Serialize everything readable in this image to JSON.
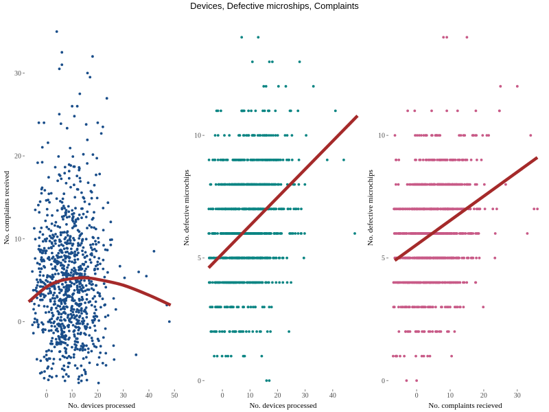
{
  "title": "Devices, Defective microships, Complaints",
  "chart_data": [
    {
      "type": "scatter",
      "xlabel": "No. devices processed",
      "ylabel": "No. complaints received",
      "xlim": [
        -8,
        51
      ],
      "ylim": [
        -8,
        35.5
      ],
      "xticks": [
        0,
        10,
        20,
        30,
        40,
        50
      ],
      "yticks": [
        0,
        10,
        20,
        30
      ],
      "point_color": "#1a4e8a",
      "trend_color": "#a52a2a",
      "trend": {
        "kind": "smooth",
        "x": [
          -7,
          0,
          5,
          10,
          15,
          20,
          30,
          40,
          48.5
        ],
        "y": [
          2.4,
          4.2,
          4.9,
          5.2,
          5.3,
          5.1,
          4.4,
          3.2,
          2.0
        ]
      },
      "generator": {
        "seed": 11,
        "n": 950,
        "x_mean": 8,
        "x_sd": 7.5,
        "x_min": -6,
        "x_max": 49,
        "y_base": 4.5,
        "y_sd": 6.5,
        "y_min": -7.5,
        "y_max": 35,
        "discrete_y": false
      },
      "extra_points": [
        [
          4,
          35
        ],
        [
          6,
          32.5
        ],
        [
          6,
          31
        ],
        [
          5,
          30.5
        ],
        [
          18,
          32
        ],
        [
          16,
          30
        ],
        [
          17,
          29.5
        ],
        [
          13,
          27.5
        ],
        [
          10,
          26
        ],
        [
          12,
          26
        ],
        [
          20,
          24
        ],
        [
          -3,
          24
        ],
        [
          -1,
          24
        ],
        [
          22,
          23.5
        ],
        [
          36,
          6
        ],
        [
          39,
          5.5
        ],
        [
          42,
          8.5
        ],
        [
          48,
          0
        ],
        [
          35,
          -4
        ],
        [
          47,
          2
        ]
      ]
    },
    {
      "type": "scatter",
      "xlabel": "No. devices processed",
      "ylabel": "No. defective microchips",
      "xlim": [
        -6,
        50
      ],
      "ylim": [
        -0.3,
        14.4
      ],
      "xticks": [
        0,
        10,
        20,
        30,
        40
      ],
      "yticks": [
        0,
        5,
        10
      ],
      "point_color": "#0b8583",
      "trend_color": "#a52a2a",
      "trend": {
        "kind": "line",
        "x": [
          -5,
          49
        ],
        "y": [
          4.6,
          10.8
        ]
      },
      "generator": {
        "seed": 23,
        "n": 1100,
        "x_mean": 8,
        "x_sd": 8,
        "x_min": -5,
        "x_max": 48,
        "y_base": 5.5,
        "y_slope": 0.08,
        "y_sd": 1.9,
        "y_min": 1,
        "y_max": 14,
        "discrete_y": true
      },
      "extra_points": [
        [
          7,
          14
        ],
        [
          13,
          14
        ],
        [
          28,
          13
        ],
        [
          33,
          12
        ],
        [
          41,
          11
        ],
        [
          38,
          9
        ],
        [
          44,
          9
        ],
        [
          48,
          6
        ],
        [
          23,
          12
        ],
        [
          -3,
          1
        ],
        [
          -1,
          2
        ],
        [
          17,
          0
        ],
        [
          16,
          0
        ]
      ]
    },
    {
      "type": "scatter",
      "xlabel": "No. complaints recieved",
      "ylabel": "No. defective microchips",
      "xlim": [
        -8,
        37
      ],
      "ylim": [
        -0.3,
        14.4
      ],
      "xticks": [
        0,
        10,
        20,
        30
      ],
      "yticks": [
        0,
        5,
        10
      ],
      "point_color": "#c85a87",
      "trend_color": "#a52a2a",
      "trend": {
        "kind": "line",
        "x": [
          -6.5,
          36
        ],
        "y": [
          4.9,
          9.1
        ]
      },
      "generator": {
        "seed": 37,
        "n": 1100,
        "x_mean": 4.5,
        "x_sd": 6.5,
        "x_min": -7,
        "x_max": 35,
        "y_base": 5.5,
        "y_slope": 0.09,
        "y_sd": 1.9,
        "y_min": 1,
        "y_max": 14,
        "discrete_y": true
      },
      "extra_points": [
        [
          8,
          14
        ],
        [
          9,
          14
        ],
        [
          15,
          14
        ],
        [
          25,
          12
        ],
        [
          30,
          12
        ],
        [
          34,
          10
        ],
        [
          35,
          7
        ],
        [
          36,
          7
        ],
        [
          33,
          6
        ],
        [
          -3,
          0
        ],
        [
          0,
          0
        ],
        [
          -7,
          1
        ],
        [
          -6,
          1
        ]
      ]
    }
  ]
}
